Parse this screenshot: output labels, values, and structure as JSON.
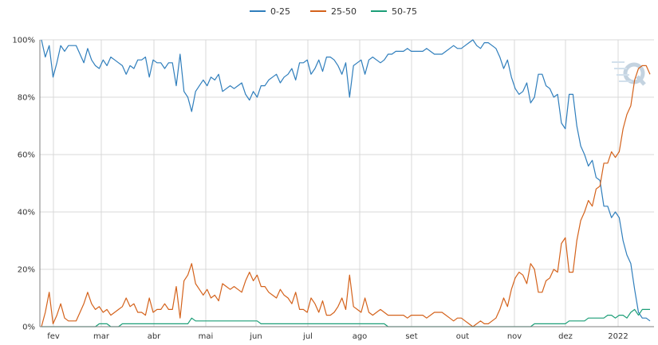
{
  "chart_data": {
    "type": "line",
    "title": "",
    "xlabel": "",
    "ylabel": "",
    "x_ticks": [
      "fev",
      "mar",
      "abr",
      "mai",
      "jun",
      "jul",
      "ago",
      "set",
      "out",
      "nov",
      "dez",
      "2022"
    ],
    "y_ticks": [
      "0%",
      "20%",
      "40%",
      "60%",
      "80%",
      "100%"
    ],
    "ylim": [
      0,
      100
    ],
    "grid": true,
    "legend_position": "top-center",
    "watermark_icon": "quantitative-q-logo-icon",
    "series": [
      {
        "name": "0-25",
        "color": "#2f7ebc",
        "values": [
          100,
          94,
          98,
          87,
          92,
          98,
          96,
          98,
          98,
          98,
          95,
          92,
          97,
          93,
          91,
          90,
          93,
          91,
          94,
          93,
          92,
          91,
          88,
          91,
          90,
          93,
          93,
          94,
          87,
          93,
          92,
          92,
          90,
          92,
          92,
          84,
          95,
          82,
          80,
          75,
          82,
          84,
          86,
          84,
          87,
          86,
          88,
          82,
          83,
          84,
          83,
          84,
          85,
          81,
          79,
          82,
          80,
          84,
          84,
          86,
          87,
          88,
          85,
          87,
          88,
          90,
          86,
          92,
          92,
          93,
          88,
          90,
          93,
          89,
          94,
          94,
          93,
          91,
          88,
          92,
          80,
          91,
          92,
          93,
          88,
          93,
          94,
          93,
          92,
          93,
          95,
          95,
          96,
          96,
          96,
          97,
          96,
          96,
          96,
          96,
          97,
          96,
          95,
          95,
          95,
          96,
          97,
          98,
          97,
          97,
          98,
          99,
          100,
          98,
          97,
          99,
          99,
          98,
          97,
          94,
          90,
          93,
          87,
          83,
          81,
          82,
          85,
          78,
          80,
          88,
          88,
          84,
          83,
          80,
          81,
          71,
          69,
          81,
          81,
          70,
          63,
          60,
          56,
          58,
          52,
          51,
          42,
          42,
          38,
          40,
          38,
          30,
          25,
          22,
          13,
          5,
          3,
          3,
          2
        ],
        "linewidth": 1.2
      },
      {
        "name": "25-50",
        "color": "#d4621b",
        "values": [
          0,
          5,
          12,
          1,
          4,
          8,
          3,
          2,
          2,
          2,
          5,
          8,
          12,
          8,
          6,
          7,
          5,
          6,
          4,
          5,
          6,
          7,
          10,
          7,
          8,
          5,
          5,
          4,
          10,
          5,
          6,
          6,
          8,
          6,
          6,
          14,
          3,
          16,
          18,
          22,
          15,
          13,
          11,
          13,
          10,
          11,
          9,
          15,
          14,
          13,
          14,
          13,
          12,
          16,
          19,
          16,
          18,
          14,
          14,
          12,
          11,
          10,
          13,
          11,
          10,
          8,
          12,
          6,
          6,
          5,
          10,
          8,
          5,
          9,
          4,
          4,
          5,
          7,
          10,
          6,
          18,
          7,
          6,
          5,
          10,
          5,
          4,
          5,
          6,
          5,
          4,
          4,
          4,
          4,
          4,
          3,
          4,
          4,
          4,
          4,
          3,
          4,
          5,
          5,
          5,
          4,
          3,
          2,
          3,
          3,
          2,
          1,
          0,
          1,
          2,
          1,
          1,
          2,
          3,
          6,
          10,
          7,
          13,
          17,
          19,
          18,
          15,
          22,
          20,
          12,
          12,
          16,
          17,
          20,
          19,
          29,
          31,
          19,
          19,
          30,
          37,
          40,
          44,
          42,
          48,
          49,
          57,
          57,
          61,
          59,
          61,
          69,
          74,
          77,
          86,
          90,
          91,
          91,
          88
        ],
        "linewidth": 1.2
      },
      {
        "name": "50-75",
        "color": "#1b9e77",
        "values": [
          0,
          0,
          0,
          0,
          0,
          0,
          0,
          0,
          0,
          0,
          0,
          0,
          0,
          0,
          0,
          1,
          1,
          1,
          0,
          0,
          0,
          1,
          1,
          1,
          1,
          1,
          1,
          1,
          1,
          1,
          1,
          1,
          1,
          1,
          1,
          1,
          1,
          1,
          1,
          3,
          2,
          2,
          2,
          2,
          2,
          2,
          2,
          2,
          2,
          2,
          2,
          2,
          2,
          2,
          2,
          2,
          2,
          1,
          1,
          1,
          1,
          1,
          1,
          1,
          1,
          1,
          1,
          1,
          1,
          1,
          1,
          1,
          1,
          1,
          1,
          1,
          1,
          1,
          1,
          1,
          1,
          1,
          1,
          1,
          1,
          1,
          1,
          1,
          1,
          1,
          0,
          0,
          0,
          0,
          0,
          0,
          0,
          0,
          0,
          0,
          0,
          0,
          0,
          0,
          0,
          0,
          0,
          0,
          0,
          0,
          0,
          0,
          0,
          0,
          0,
          0,
          0,
          0,
          0,
          0,
          0,
          0,
          0,
          0,
          0,
          0,
          0,
          0,
          1,
          1,
          1,
          1,
          1,
          1,
          1,
          1,
          1,
          2,
          2,
          2,
          2,
          2,
          3,
          3,
          3,
          3,
          3,
          4,
          4,
          3,
          4,
          4,
          3,
          5,
          6,
          4,
          6,
          6,
          6
        ],
        "linewidth": 1.2
      }
    ]
  }
}
